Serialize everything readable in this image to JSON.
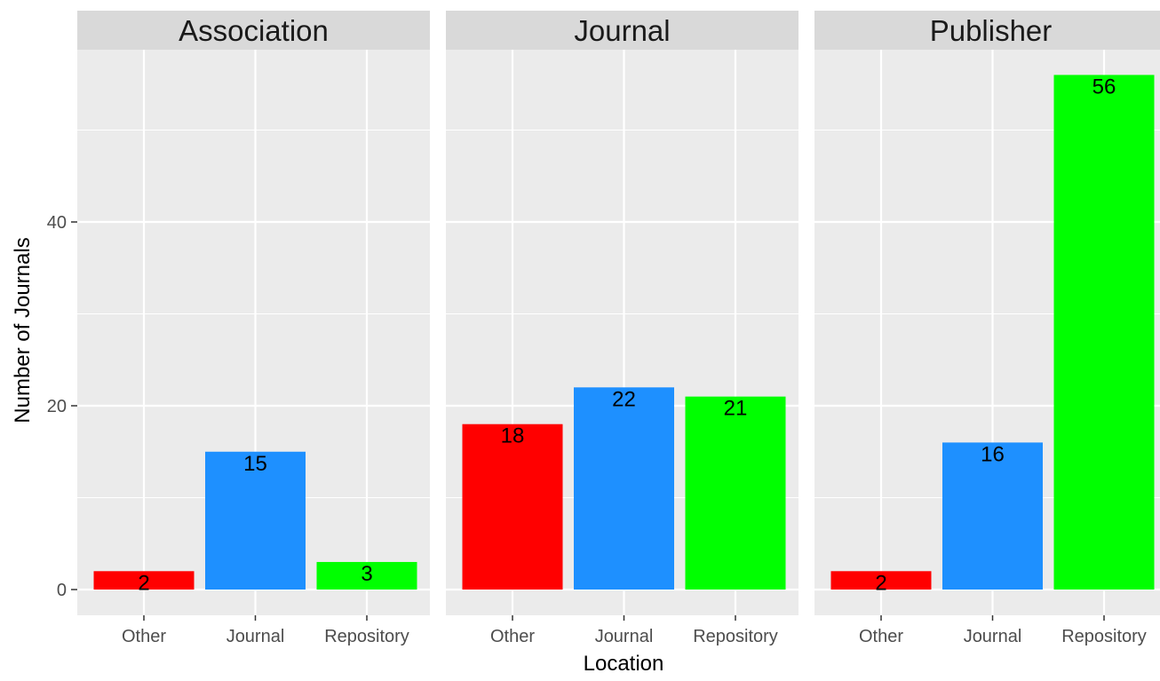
{
  "chart_data": {
    "type": "bar",
    "facet_by": "Facet",
    "xlabel": "Location",
    "ylabel": "Number of Journals",
    "ylim": [
      0,
      59
    ],
    "y_ticks": [
      0,
      20,
      40
    ],
    "grid": true,
    "legend": "none",
    "categories": [
      "Other",
      "Journal",
      "Repository"
    ],
    "colors": {
      "Other": "#ff0000",
      "Journal": "#1e90ff",
      "Repository": "#00ff00"
    },
    "panel_background": "#ebebeb",
    "strip_background": "#d9d9d9",
    "facets": [
      {
        "name": "Association",
        "values": [
          2,
          15,
          3
        ]
      },
      {
        "name": "Journal",
        "values": [
          18,
          22,
          21
        ]
      },
      {
        "name": "Publisher",
        "values": [
          2,
          16,
          56
        ]
      }
    ]
  }
}
